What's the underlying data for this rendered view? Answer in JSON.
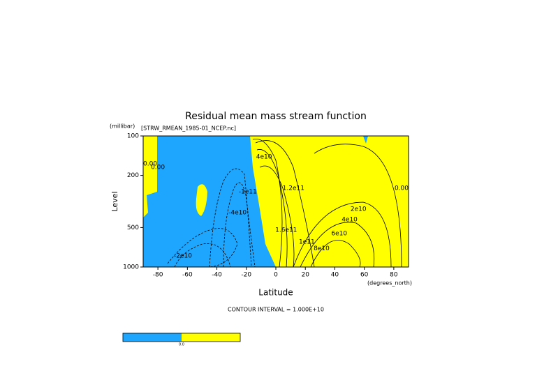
{
  "chart_data": {
    "type": "contour",
    "title": "Residual mean mass stream function",
    "subtitle": "[STRW_RMEAN_1985-01_NCEP.nc]",
    "y_unit": "(millibar)",
    "y_label": "Level",
    "x_label": "Latitude",
    "x_unit": "(degrees_north)",
    "xlim": [
      -90,
      90
    ],
    "xticks": [
      -80,
      -60,
      -40,
      -20,
      0,
      20,
      40,
      60,
      80
    ],
    "ylim": [
      1000,
      100
    ],
    "yticks": [
      100,
      200,
      500,
      1000
    ],
    "ylog": true,
    "negative_color": "#1ea6ff",
    "positive_color": "#ffff00",
    "contour_labels": [
      {
        "text": "0.00",
        "lat": -90,
        "level": 163
      },
      {
        "text": "0.00",
        "lat": -80,
        "level": 174
      },
      {
        "text": "0.00",
        "lat": 90,
        "level": 250
      },
      {
        "text": "-2e10",
        "lat": -63,
        "level": 820
      },
      {
        "text": "-4e10",
        "lat": -26,
        "level": 384
      },
      {
        "text": "-1e11",
        "lat": -19,
        "level": 266
      },
      {
        "text": "4e10",
        "lat": -8,
        "level": 144
      },
      {
        "text": "1.2e11",
        "lat": 12,
        "level": 250
      },
      {
        "text": "1.6e11",
        "lat": 7,
        "level": 522
      },
      {
        "text": "1e11",
        "lat": 21,
        "level": 643
      },
      {
        "text": "8e10",
        "lat": 31,
        "level": 725
      },
      {
        "text": "6e10",
        "lat": 43,
        "level": 555
      },
      {
        "text": "4e10",
        "lat": 50,
        "level": 435
      },
      {
        "text": "2e10",
        "lat": 56,
        "level": 362
      }
    ],
    "footer": "CONTOUR INTERVAL = 1.000E+10",
    "colorbar_label": "0.0"
  }
}
